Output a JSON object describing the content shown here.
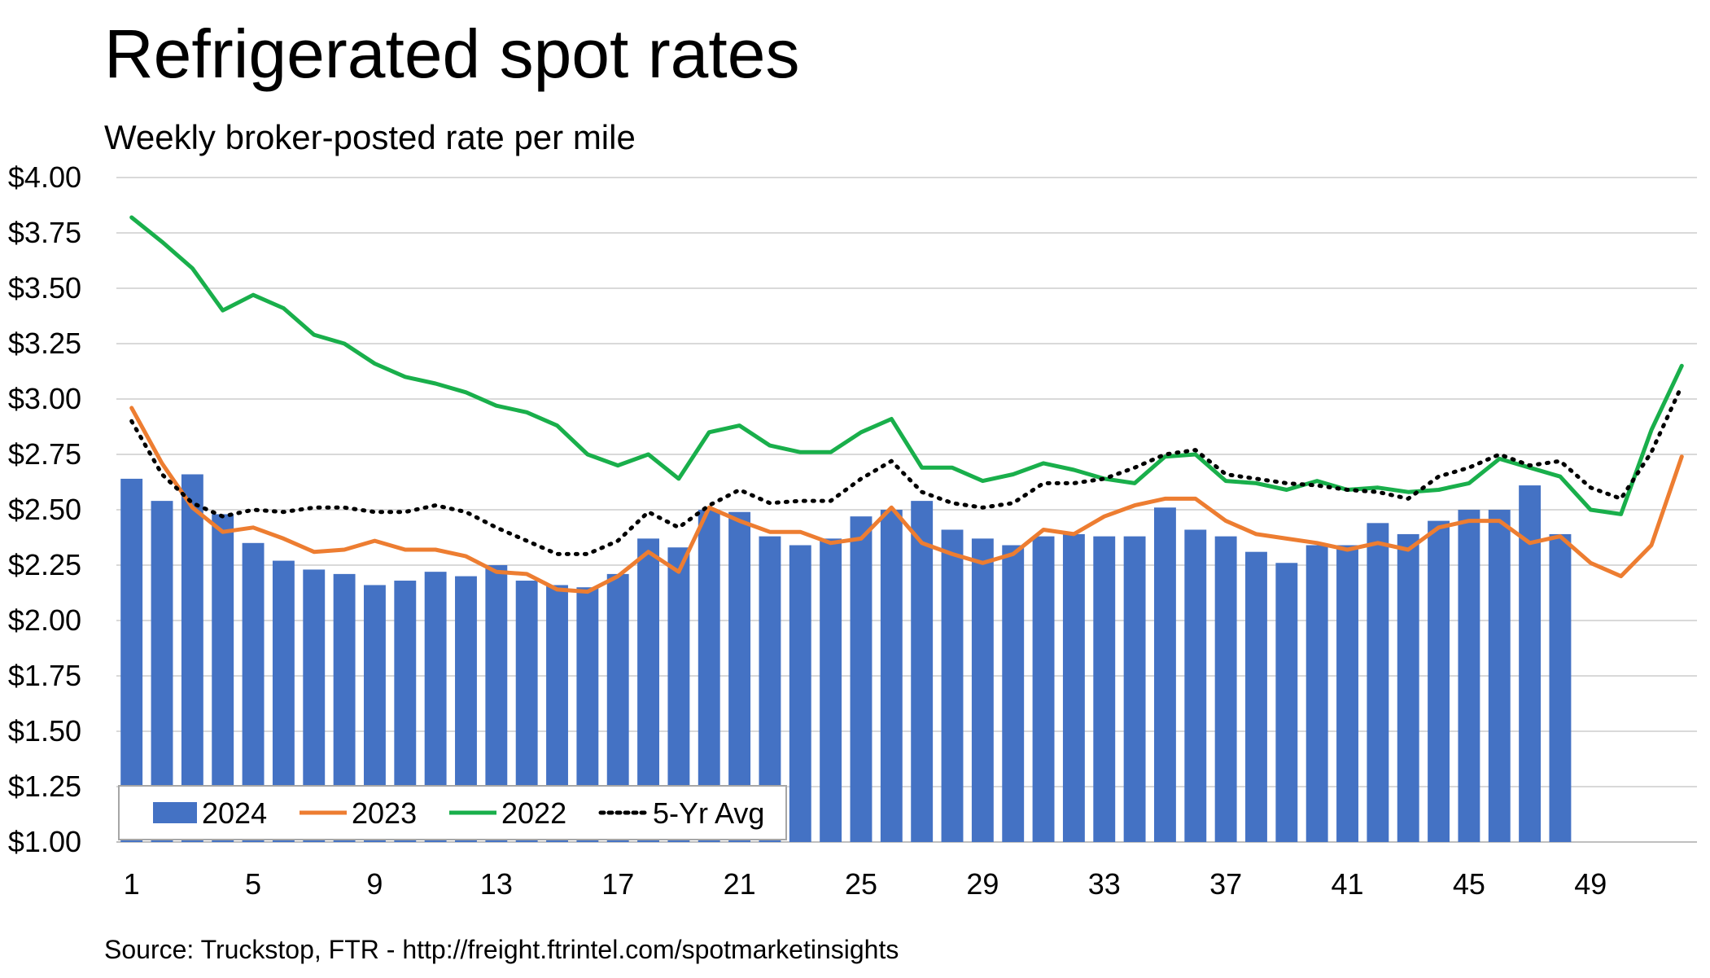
{
  "chart_data": {
    "type": "bar",
    "title": "Refrigerated spot rates",
    "subtitle": "Weekly broker-posted rate per mile",
    "source": "Source: Truckstop, FTR - http://freight.ftrintel.com/spotmarketinsights",
    "xlabel": "",
    "ylabel": "",
    "ylim": [
      1.0,
      4.0
    ],
    "y_ticks": [
      "$1.00",
      "$1.25",
      "$1.50",
      "$1.75",
      "$2.00",
      "$2.25",
      "$2.50",
      "$2.75",
      "$3.00",
      "$3.25",
      "$3.50",
      "$3.75",
      "$4.00"
    ],
    "x_ticks": [
      "1",
      "5",
      "9",
      "13",
      "17",
      "21",
      "25",
      "29",
      "33",
      "37",
      "41",
      "45",
      "49"
    ],
    "weeks": 52,
    "colors": {
      "2024": "#4472C4",
      "2023": "#ED7D31",
      "2022": "#19AF4B",
      "avg": "#000000",
      "grid": "#D9D9D9"
    },
    "legend": {
      "placement": "bottom-left",
      "labels": [
        "2024",
        "2023",
        "2022",
        "5-Yr Avg"
      ]
    },
    "series": [
      {
        "name": "2024",
        "type": "bar",
        "values": [
          2.64,
          2.54,
          2.66,
          2.48,
          2.35,
          2.27,
          2.23,
          2.21,
          2.16,
          2.18,
          2.22,
          2.2,
          2.25,
          2.18,
          2.16,
          2.15,
          2.21,
          2.37,
          2.33,
          2.5,
          2.49,
          2.38,
          2.34,
          2.37,
          2.47,
          2.5,
          2.54,
          2.41,
          2.37,
          2.34,
          2.38,
          2.39,
          2.38,
          2.38,
          2.51,
          2.41,
          2.38,
          2.31,
          2.26,
          2.34,
          2.34,
          2.44,
          2.39,
          2.45,
          2.5,
          2.5,
          2.61,
          2.39
        ]
      },
      {
        "name": "2023",
        "type": "line",
        "values": [
          2.96,
          2.71,
          2.51,
          2.4,
          2.42,
          2.37,
          2.31,
          2.32,
          2.36,
          2.32,
          2.32,
          2.29,
          2.22,
          2.21,
          2.14,
          2.13,
          2.2,
          2.31,
          2.22,
          2.51,
          2.45,
          2.4,
          2.4,
          2.35,
          2.37,
          2.51,
          2.35,
          2.3,
          2.26,
          2.3,
          2.41,
          2.39,
          2.47,
          2.52,
          2.55,
          2.55,
          2.45,
          2.39,
          2.37,
          2.35,
          2.32,
          2.35,
          2.32,
          2.42,
          2.45,
          2.45,
          2.35,
          2.38,
          2.26,
          2.2,
          2.34,
          2.74
        ]
      },
      {
        "name": "2022",
        "type": "line",
        "values": [
          3.82,
          3.71,
          3.59,
          3.4,
          3.47,
          3.41,
          3.29,
          3.25,
          3.16,
          3.1,
          3.07,
          3.03,
          2.97,
          2.94,
          2.88,
          2.75,
          2.7,
          2.75,
          2.64,
          2.85,
          2.88,
          2.79,
          2.76,
          2.76,
          2.85,
          2.91,
          2.69,
          2.69,
          2.63,
          2.66,
          2.71,
          2.68,
          2.64,
          2.62,
          2.74,
          2.75,
          2.63,
          2.62,
          2.59,
          2.63,
          2.59,
          2.6,
          2.58,
          2.59,
          2.62,
          2.73,
          2.69,
          2.65,
          2.5,
          2.48,
          2.86,
          3.15
        ]
      },
      {
        "name": "5-Yr Avg",
        "type": "line",
        "style": "dotted",
        "values": [
          2.9,
          2.66,
          2.53,
          2.47,
          2.5,
          2.49,
          2.51,
          2.51,
          2.49,
          2.49,
          2.52,
          2.49,
          2.42,
          2.36,
          2.3,
          2.3,
          2.36,
          2.49,
          2.42,
          2.52,
          2.59,
          2.53,
          2.54,
          2.54,
          2.64,
          2.72,
          2.58,
          2.53,
          2.51,
          2.53,
          2.62,
          2.62,
          2.64,
          2.69,
          2.75,
          2.77,
          2.66,
          2.64,
          2.62,
          2.61,
          2.59,
          2.58,
          2.55,
          2.65,
          2.69,
          2.75,
          2.7,
          2.72,
          2.6,
          2.55,
          2.76,
          3.06
        ]
      }
    ]
  }
}
